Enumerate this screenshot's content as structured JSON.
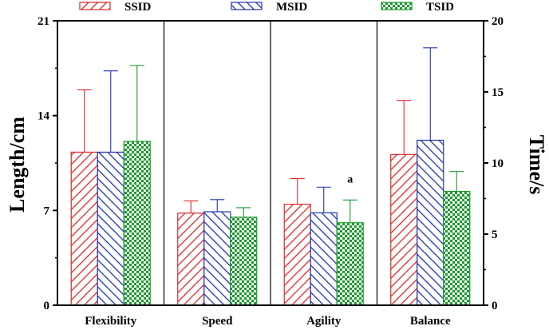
{
  "chart_data": {
    "type": "bar",
    "categories": [
      "Flexibility",
      "Speed",
      "Agility",
      "Balance"
    ],
    "series": [
      {
        "name": "SSID",
        "color": "#e0292b",
        "pattern": "diag-right",
        "values": [
          11.3,
          6.8,
          7.1,
          10.6
        ],
        "errors": [
          4.6,
          0.9,
          1.8,
          3.8
        ]
      },
      {
        "name": "MSID",
        "color": "#2233b0",
        "pattern": "diag-left",
        "values": [
          11.3,
          6.9,
          6.5,
          11.6
        ],
        "errors": [
          6.0,
          0.9,
          1.8,
          6.5
        ]
      },
      {
        "name": "TSID",
        "color": "#1a9b2c",
        "pattern": "checker",
        "values": [
          12.1,
          6.5,
          5.8,
          8.0
        ],
        "errors": [
          5.6,
          0.7,
          1.6,
          1.4
        ]
      }
    ],
    "axis_units": [
      "length",
      "length",
      "time",
      "time"
    ],
    "left_axis": {
      "label": "Length/cm",
      "ticks": [
        "0",
        "7",
        "14",
        "21"
      ],
      "lim": [
        0,
        21
      ]
    },
    "right_axis": {
      "label": "Time/s",
      "ticks": [
        "0",
        "5",
        "10",
        "15",
        "20"
      ],
      "lim": [
        0,
        20
      ]
    },
    "annotations": [
      {
        "category": "Agility",
        "series": "TSID",
        "text": "a"
      }
    ],
    "legend_position": "top"
  }
}
